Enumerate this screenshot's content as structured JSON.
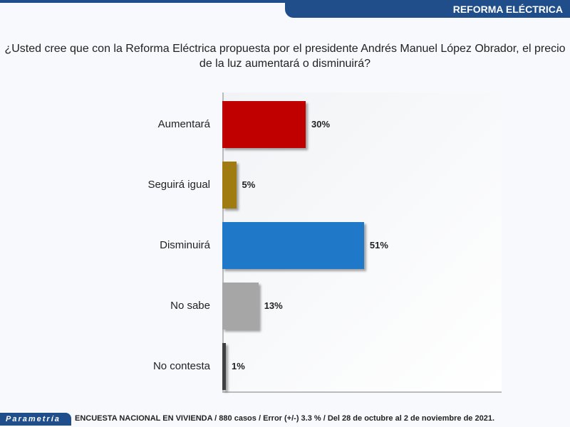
{
  "header": {
    "section": "REFORMA ELÉCTRICA"
  },
  "chart_data": {
    "type": "bar",
    "orientation": "horizontal",
    "title": "¿Usted cree que con la Reforma Eléctrica propuesta por el presidente Andrés Manuel López Obrador, el precio de la luz aumentará o disminuirá?",
    "categories": [
      "Aumentará",
      "Seguirá igual",
      "Disminuirá",
      "No sabe",
      "No contesta"
    ],
    "values": [
      30,
      5,
      51,
      13,
      1
    ],
    "labels": [
      "30%",
      "5%",
      "51%",
      "13%",
      "1%"
    ],
    "colors": [
      "#c00000",
      "#a07c10",
      "#1f78c8",
      "#a6a6a6",
      "#404040"
    ],
    "xlim": [
      0,
      100
    ],
    "grid": false
  },
  "footer": {
    "logo": "Parametría",
    "note": "ENCUESTA NACIONAL EN VIVIENDA / 880 casos / Error (+/-) 3.3 % / Del 28 de octubre al 2 de noviembre de 2021."
  }
}
